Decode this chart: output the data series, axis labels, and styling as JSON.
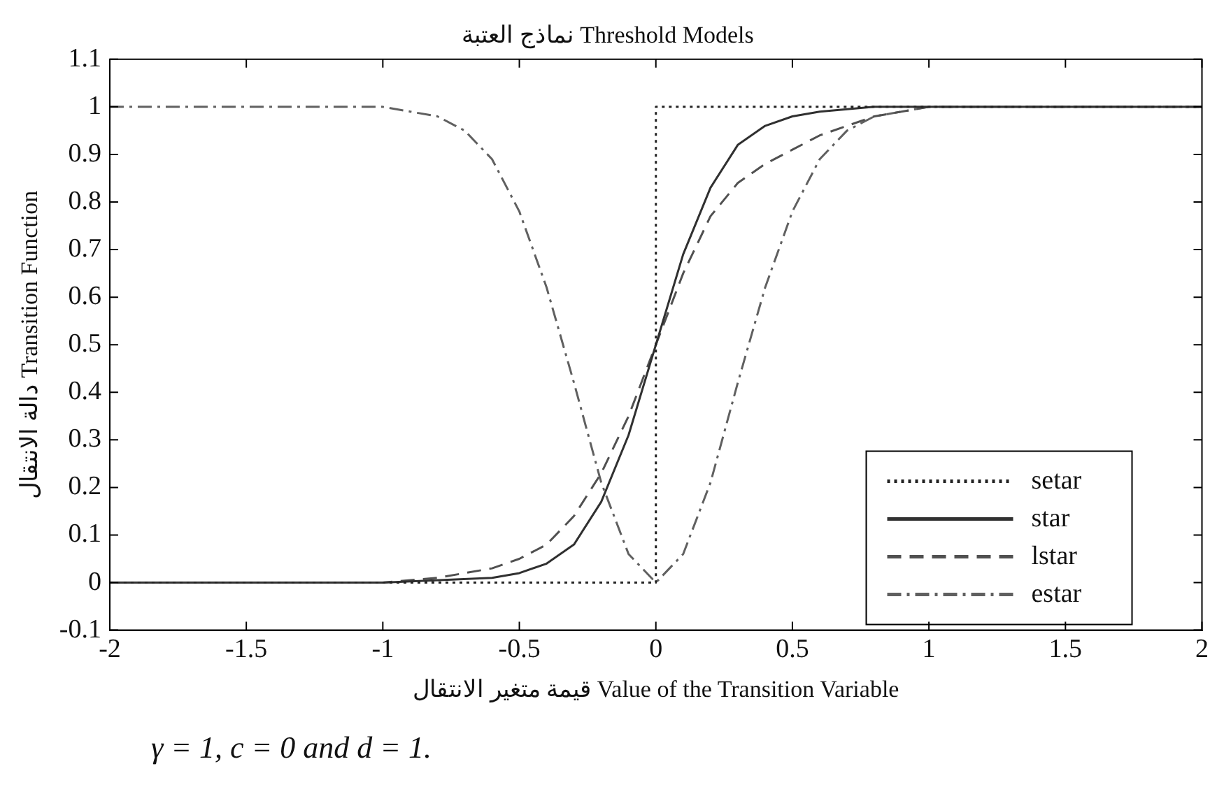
{
  "chart_data": {
    "type": "line",
    "title": "نماذج العتبة Threshold Models",
    "xlabel": "قيمة متغير الانتقال Value of the Transition Variable",
    "ylabel": "دالة الانتقال Transition Function",
    "xlim": [
      -2,
      2
    ],
    "xticks": [
      {
        "value": -2,
        "label": "-2"
      },
      -1.5,
      {
        "value": -1,
        "label": "-1"
      },
      -0.5,
      0,
      0.5,
      {
        "value": 1,
        "label": "1"
      },
      1.5,
      {
        "value": 2,
        "label": "2"
      }
    ],
    "ylim": [
      -0.1,
      1.1
    ],
    "yticks": [
      -0.1,
      0,
      0.1,
      0.2,
      0.3,
      0.4,
      0.5,
      0.6,
      0.7,
      0.8,
      0.9,
      {
        "value": 1,
        "label": "1"
      },
      1.1
    ],
    "grid": false,
    "legend": "bottom right",
    "marker": "none",
    "annotations": [
      "γ = 1, c = 0 and d = 1."
    ],
    "series": [
      {
        "name": "setar",
        "color": "#222222",
        "line_style": "dotted",
        "x": [
          -2,
          0,
          0,
          2
        ],
        "values": [
          0,
          0,
          1,
          1
        ]
      },
      {
        "name": "star",
        "color": "#303030",
        "line_style": "solid",
        "x": [
          -2,
          -1,
          -0.6,
          -0.5,
          -0.4,
          -0.3,
          -0.2,
          -0.1,
          0,
          0.1,
          0.2,
          0.3,
          0.4,
          0.5,
          0.6,
          0.8,
          1,
          2
        ],
        "values": [
          0,
          0,
          0.01,
          0.02,
          0.04,
          0.08,
          0.17,
          0.31,
          0.5,
          0.69,
          0.83,
          0.92,
          0.96,
          0.98,
          0.99,
          1,
          1,
          1
        ]
      },
      {
        "name": "lstar",
        "color": "#505050",
        "line_style": "dashed",
        "x": [
          -2,
          -1,
          -0.8,
          -0.6,
          -0.5,
          -0.4,
          -0.3,
          -0.2,
          -0.1,
          0,
          0.1,
          0.2,
          0.3,
          0.4,
          0.5,
          0.6,
          0.8,
          1,
          2
        ],
        "values": [
          0,
          0,
          0.01,
          0.03,
          0.05,
          0.08,
          0.14,
          0.23,
          0.35,
          0.5,
          0.65,
          0.77,
          0.84,
          0.88,
          0.91,
          0.94,
          0.98,
          1,
          1
        ]
      },
      {
        "name": "estar",
        "color": "#606060",
        "line_style": "dashdot",
        "x": [
          -2,
          -1,
          -0.9,
          -0.8,
          -0.7,
          -0.6,
          -0.5,
          -0.4,
          -0.3,
          -0.2,
          -0.1,
          0,
          0.1,
          0.2,
          0.3,
          0.4,
          0.5,
          0.6,
          0.7,
          0.8,
          0.9,
          1,
          2
        ],
        "values": [
          1,
          1,
          0.99,
          0.98,
          0.95,
          0.89,
          0.78,
          0.62,
          0.42,
          0.21,
          0.06,
          0,
          0.06,
          0.21,
          0.42,
          0.62,
          0.78,
          0.89,
          0.95,
          0.98,
          0.99,
          1,
          1
        ]
      }
    ]
  }
}
